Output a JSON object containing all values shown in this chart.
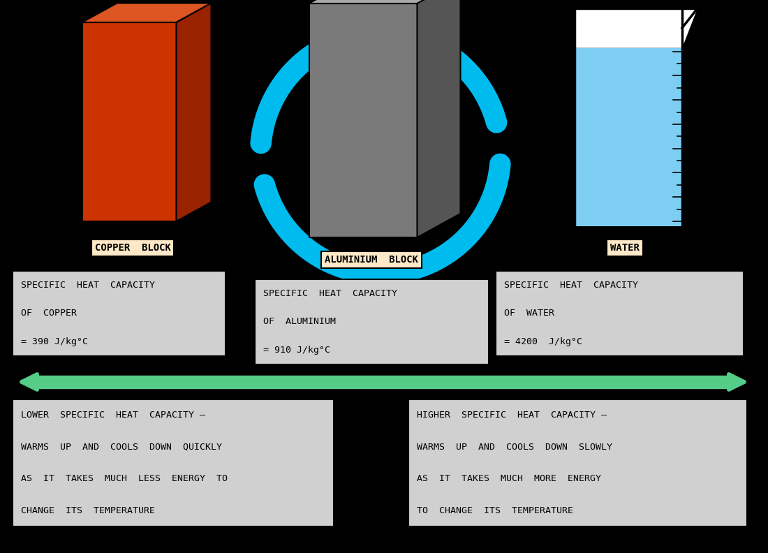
{
  "bg_color": "#000000",
  "copper_block": {
    "label": "COPPER  BLOCK",
    "label_bg": "#fde8c8",
    "info_lines": [
      "SPECIFIC  HEAT  CAPACITY",
      "OF  COPPER",
      "= 390 J/kg°C"
    ],
    "info_bg": "#d0d0d0",
    "front_color": "#cc3300",
    "top_color": "#dd5522",
    "side_color": "#992200"
  },
  "aluminium_block": {
    "label": "ALUMINIUM  BLOCK",
    "label_bg": "#fde8c8",
    "info_lines": [
      "SPECIFIC  HEAT  CAPACITY",
      "OF  ALUMINIUM",
      "= 910 J/kg°C"
    ],
    "info_bg": "#d0d0d0",
    "front_color": "#7a7a7a",
    "top_color": "#aaaaaa",
    "side_color": "#555555"
  },
  "water": {
    "label": "WATER",
    "label_bg": "#fde8c8",
    "info_lines": [
      "SPECIFIC  HEAT  CAPACITY",
      "OF  WATER",
      "= 4200  J/kg°C"
    ],
    "info_bg": "#d0d0d0",
    "beaker_water_color": "#7ecef4",
    "beaker_glass_color": "#ffffff",
    "beaker_outline": "#000000"
  },
  "arrow_color": "#55cc88",
  "circular_arrow_color": "#00bbee",
  "left_box": {
    "lines": [
      "LOWER  SPECIFIC  HEAT  CAPACITY –",
      "WARMS  UP  AND  COOLS  DOWN  QUICKLY",
      "AS  IT  TAKES  MUCH  LESS  ENERGY  TO",
      "CHANGE  ITS  TEMPERATURE"
    ],
    "bg": "#d0d0d0"
  },
  "right_box": {
    "lines": [
      "HIGHER  SPECIFIC  HEAT  CAPACITY –",
      "WARMS  UP  AND  COOLS  DOWN  SLOWLY",
      "AS  IT  TAKES  MUCH  MORE  ENERGY",
      "TO  CHANGE  ITS  TEMPERATURE"
    ],
    "bg": "#d0d0d0"
  }
}
